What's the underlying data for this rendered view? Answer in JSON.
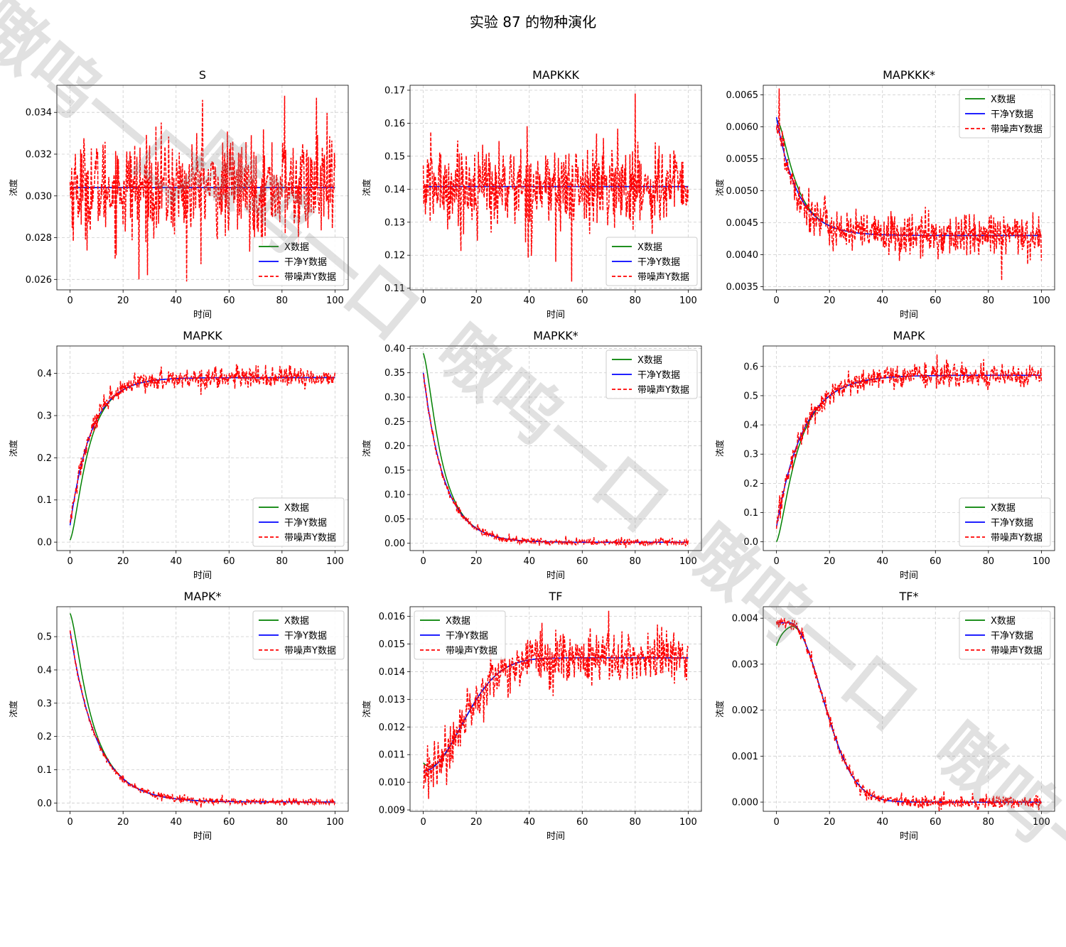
{
  "figure": {
    "title": "实验 87 的物种演化",
    "watermark": "嗷呜一口"
  },
  "colors": {
    "x_series": "#008000",
    "clean_series": "#0000ff",
    "noisy_series": "#ff0000",
    "grid": "#cccccc"
  },
  "chart_data": [
    {
      "type": "line",
      "title": "S",
      "xlabel": "时间",
      "ylabel": "浓度",
      "xlim": [
        -5,
        105
      ],
      "ylim": [
        0.0255,
        0.0353
      ],
      "xticks": [
        0,
        20,
        40,
        60,
        80,
        100
      ],
      "yticks": [
        "0.026",
        "0.028",
        "0.030",
        "0.032",
        "0.034"
      ],
      "ytick_values": [
        0.026,
        0.028,
        0.03,
        0.032,
        0.034
      ],
      "legend": "lower-right",
      "legend_entries": [
        "X数据",
        "干净Y数据",
        "带噪声Y数据"
      ],
      "grid": true,
      "model": {
        "kind": "const",
        "v": 0.0304
      },
      "noise_std": 0.0012,
      "x_start": 0.0304,
      "spikes": [
        [
          50,
          0.0346
        ],
        [
          81,
          0.0348
        ],
        [
          93,
          0.0347
        ],
        [
          44,
          0.0259
        ],
        [
          26,
          0.026
        ]
      ]
    },
    {
      "type": "line",
      "title": "MAPKKK",
      "xlabel": "时间",
      "ylabel": "浓度",
      "xlim": [
        -5,
        105
      ],
      "ylim": [
        0.1095,
        0.1715
      ],
      "xticks": [
        0,
        20,
        40,
        60,
        80,
        100
      ],
      "yticks": [
        "0.11",
        "0.12",
        "0.13",
        "0.14",
        "0.15",
        "0.16",
        "0.17"
      ],
      "ytick_values": [
        0.11,
        0.12,
        0.13,
        0.14,
        0.15,
        0.16,
        0.17
      ],
      "legend": "lower-right",
      "legend_entries": [
        "X数据",
        "干净Y数据",
        "带噪声Y数据"
      ],
      "grid": true,
      "model": {
        "kind": "const",
        "v": 0.1408
      },
      "noise_std": 0.0065,
      "x_start": 0.1408,
      "spikes": [
        [
          80,
          0.169
        ],
        [
          56,
          0.112
        ],
        [
          50,
          0.118
        ]
      ]
    },
    {
      "type": "line",
      "title": "MAPKKK*",
      "xlabel": "时间",
      "ylabel": "浓度",
      "xlim": [
        -5,
        105
      ],
      "ylim": [
        0.00345,
        0.00665
      ],
      "xticks": [
        0,
        20,
        40,
        60,
        80,
        100
      ],
      "yticks": [
        "0.0035",
        "0.0040",
        "0.0045",
        "0.0050",
        "0.0055",
        "0.0060",
        "0.0065"
      ],
      "ytick_values": [
        0.0035,
        0.004,
        0.0045,
        0.005,
        0.0055,
        0.006,
        0.0065
      ],
      "legend": "upper-right",
      "legend_entries": [
        "X数据",
        "干净Y数据",
        "带噪声Y数据"
      ],
      "grid": true,
      "model": {
        "kind": "exp",
        "a": 0.0043,
        "b": 0.00185,
        "tau": 8
      },
      "noise_std": 0.00017,
      "x_start": 0.0061,
      "spikes": [
        [
          1,
          0.0066
        ],
        [
          85,
          0.0036
        ]
      ]
    },
    {
      "type": "line",
      "title": "MAPKK",
      "xlabel": "时间",
      "ylabel": "浓度",
      "xlim": [
        -5,
        105
      ],
      "ylim": [
        -0.02,
        0.465
      ],
      "xticks": [
        0,
        20,
        40,
        60,
        80,
        100
      ],
      "yticks": [
        "0.0",
        "0.1",
        "0.2",
        "0.3",
        "0.4"
      ],
      "ytick_values": [
        0.0,
        0.1,
        0.2,
        0.3,
        0.4
      ],
      "legend": "lower-right",
      "legend_entries": [
        "X数据",
        "干净Y数据",
        "带噪声Y数据"
      ],
      "grid": true,
      "model": {
        "kind": "exp",
        "a": 0.39,
        "b": -0.35,
        "tau": 8
      },
      "noise_std": 0.012,
      "x_start": 0.005,
      "spikes": []
    },
    {
      "type": "line",
      "title": "MAPKK*",
      "xlabel": "时间",
      "ylabel": "浓度",
      "xlim": [
        -5,
        105
      ],
      "ylim": [
        -0.015,
        0.405
      ],
      "xticks": [
        0,
        20,
        40,
        60,
        80,
        100
      ],
      "yticks": [
        "0.00",
        "0.05",
        "0.10",
        "0.15",
        "0.20",
        "0.25",
        "0.30",
        "0.35",
        "0.40"
      ],
      "ytick_values": [
        0.0,
        0.05,
        0.1,
        0.15,
        0.2,
        0.25,
        0.3,
        0.35,
        0.4
      ],
      "legend": "upper-right",
      "legend_entries": [
        "X数据",
        "干净Y数据",
        "带噪声Y数据"
      ],
      "grid": true,
      "model": {
        "kind": "exp",
        "a": 0.002,
        "b": 0.348,
        "tau": 8
      },
      "noise_std": 0.004,
      "x_start": 0.39,
      "spikes": []
    },
    {
      "type": "line",
      "title": "MAPK",
      "xlabel": "时间",
      "ylabel": "浓度",
      "xlim": [
        -5,
        105
      ],
      "ylim": [
        -0.03,
        0.67
      ],
      "xticks": [
        0,
        20,
        40,
        60,
        80,
        100
      ],
      "yticks": [
        "0.0",
        "0.1",
        "0.2",
        "0.3",
        "0.4",
        "0.5",
        "0.6"
      ],
      "ytick_values": [
        0.0,
        0.1,
        0.2,
        0.3,
        0.4,
        0.5,
        0.6
      ],
      "legend": "lower-right",
      "legend_entries": [
        "X数据",
        "干净Y数据",
        "带噪声Y数据"
      ],
      "grid": true,
      "model": {
        "kind": "exp",
        "a": 0.57,
        "b": -0.52,
        "tau": 10
      },
      "noise_std": 0.02,
      "x_start": 0.0,
      "spikes": []
    },
    {
      "type": "line",
      "title": "MAPK*",
      "xlabel": "时间",
      "ylabel": "浓度",
      "xlim": [
        -5,
        105
      ],
      "ylim": [
        -0.025,
        0.59
      ],
      "xticks": [
        0,
        20,
        40,
        60,
        80,
        100
      ],
      "yticks": [
        "0.0",
        "0.1",
        "0.2",
        "0.3",
        "0.4",
        "0.5"
      ],
      "ytick_values": [
        0.0,
        0.1,
        0.2,
        0.3,
        0.4,
        0.5
      ],
      "legend": "upper-right",
      "legend_entries": [
        "X数据",
        "干净Y数据",
        "带噪声Y数据"
      ],
      "grid": true,
      "model": {
        "kind": "exp",
        "a": 0.003,
        "b": 0.515,
        "tau": 10
      },
      "noise_std": 0.005,
      "x_start": 0.57,
      "spikes": []
    },
    {
      "type": "line",
      "title": "TF",
      "xlabel": "时间",
      "ylabel": "浓度",
      "xlim": [
        -5,
        105
      ],
      "ylim": [
        0.00895,
        0.01635
      ],
      "xticks": [
        0,
        20,
        40,
        60,
        80,
        100
      ],
      "yticks": [
        "0.009",
        "0.010",
        "0.011",
        "0.012",
        "0.013",
        "0.014",
        "0.015",
        "0.016"
      ],
      "ytick_values": [
        0.009,
        0.01,
        0.011,
        0.012,
        0.013,
        0.014,
        0.015,
        0.016
      ],
      "legend": "upper-left",
      "legend_entries": [
        "X数据",
        "干净Y数据",
        "带噪声Y数据"
      ],
      "grid": true,
      "model": {
        "kind": "sig",
        "a": 0.0145,
        "b": -0.0041,
        "tau": 20
      },
      "noise_std": 0.00045,
      "x_start": 0.0107,
      "spikes": [
        [
          70,
          0.0162
        ],
        [
          2,
          0.0094
        ]
      ]
    },
    {
      "type": "line",
      "title": "TF*",
      "xlabel": "时间",
      "ylabel": "浓度",
      "xlim": [
        -5,
        105
      ],
      "ylim": [
        -0.0002,
        0.00425
      ],
      "xticks": [
        0,
        20,
        40,
        60,
        80,
        100
      ],
      "yticks": [
        "0.000",
        "0.001",
        "0.002",
        "0.003",
        "0.004"
      ],
      "ytick_values": [
        0.0,
        0.001,
        0.002,
        0.003,
        0.004
      ],
      "legend": "upper-right",
      "legend_entries": [
        "X数据",
        "干净Y数据",
        "带噪声Y数据"
      ],
      "grid": true,
      "model": {
        "kind": "bump",
        "peak": 0.0039,
        "t0": 5,
        "tau": 17
      },
      "noise_std": 7e-05,
      "x_start": 0.0034,
      "spikes": []
    }
  ]
}
